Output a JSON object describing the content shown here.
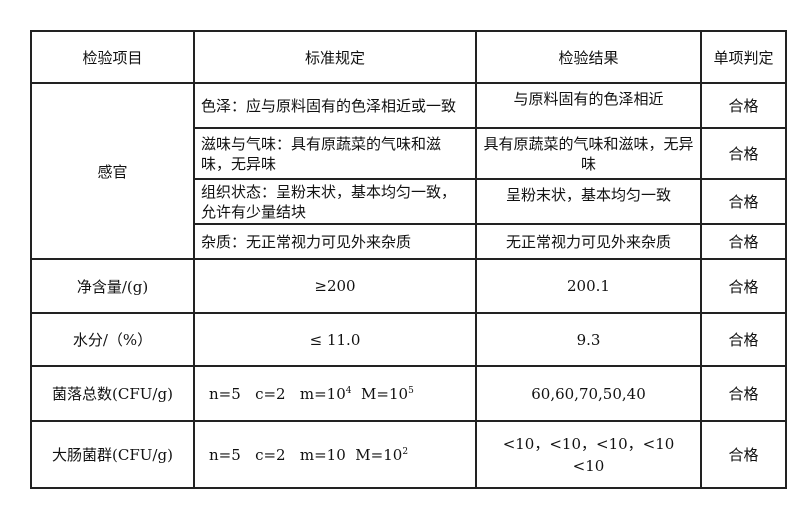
{
  "headers": [
    "检验项目",
    "标准规定",
    "检验结果",
    "单项判定"
  ],
  "sensory": {
    "label": "感官",
    "rows": [
      {
        "standard": "色泽：应与原料固有的色泽相近或一致",
        "result": "与原料固有的色泽相近",
        "verdict": "合格"
      },
      {
        "standard": "滋味与气味：具有原蔬菜的气味和滋味，无异味",
        "result": "具有原蔬菜的气味和滋味，无异味",
        "verdict": "合格"
      },
      {
        "standard": "组织状态：呈粉末状，基本均匀一致，允许有少量结块",
        "result": "呈粉末状，基本均匀一致",
        "verdict": "合格"
      },
      {
        "standard": "杂质：无正常视力可见外来杂质",
        "result": "无正常视力可见外来杂质",
        "verdict": "合格"
      }
    ]
  },
  "rows": [
    {
      "item": "净含量/(g)",
      "standard": "≥200",
      "result": "200.1",
      "verdict": "合格"
    },
    {
      "item": "水分/（%）",
      "standard": "≤ 11.0",
      "result": "9.3",
      "verdict": "合格"
    },
    {
      "item": "菌落总数(CFU/g)",
      "standard_pre": "n=5   c=2   m=10",
      "standard_sup1": "4",
      "standard_mid": "  M=10",
      "standard_sup2": "5",
      "result": "60,60,70,50,40",
      "verdict": "合格"
    },
    {
      "item": "大肠菌群(CFU/g)",
      "standard_pre": "n=5   c=2   m=10  M=10",
      "standard_sup1": "2",
      "result": "<10，<10，<10，<10 <10",
      "verdict": "合格"
    }
  ]
}
